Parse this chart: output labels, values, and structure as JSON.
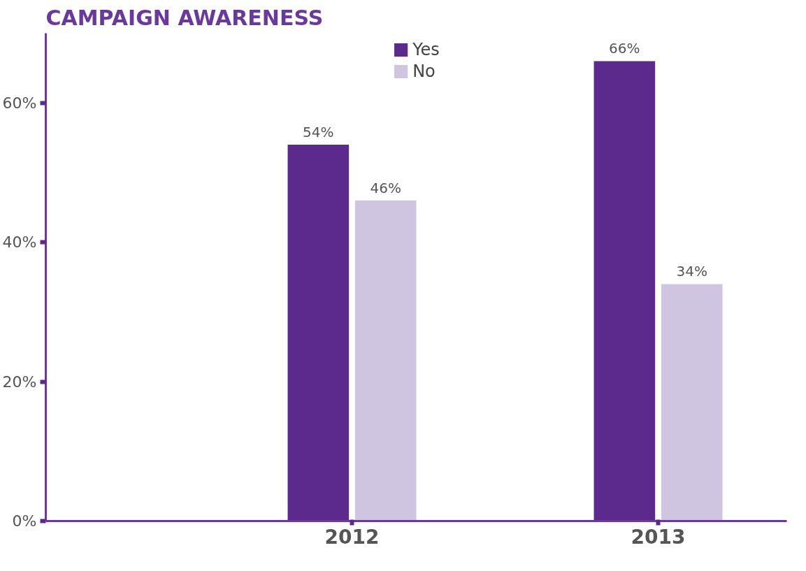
{
  "chart_data": {
    "type": "bar",
    "title": "CAMPAIGN AWARENESS",
    "categories": [
      "2012",
      "2013"
    ],
    "series": [
      {
        "name": "Yes",
        "color": "#5b2a8c",
        "values": [
          54,
          66
        ],
        "value_labels": [
          "54%",
          "66%"
        ]
      },
      {
        "name": "No",
        "color": "#cfc5e0",
        "values": [
          46,
          34
        ],
        "value_labels": [
          "46%",
          "34%"
        ]
      }
    ],
    "ylim": [
      0,
      70
    ],
    "yticks": [
      {
        "value": 0,
        "label": "0%"
      },
      {
        "value": 20,
        "label": "20%"
      },
      {
        "value": 40,
        "label": "40%"
      },
      {
        "value": 60,
        "label": "60%"
      }
    ],
    "grid": false,
    "legend": "top"
  }
}
